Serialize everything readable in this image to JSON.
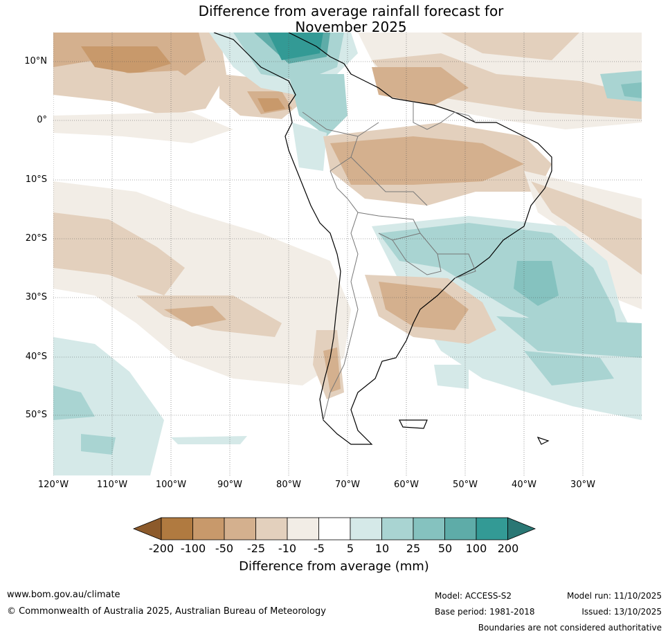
{
  "title": {
    "line1": "Difference from average rainfall forecast for",
    "line2": "November 2025"
  },
  "lat_labels": [
    "10°N",
    "0°",
    "10°S",
    "20°S",
    "30°S",
    "40°S",
    "50°S"
  ],
  "lon_labels": [
    "120°W",
    "110°W",
    "100°W",
    "90°W",
    "80°W",
    "70°W",
    "60°W",
    "50°W",
    "40°W",
    "30°W"
  ],
  "colorbar": {
    "ticks": [
      "-200",
      "-100",
      "-50",
      "-25",
      "-10",
      "-5",
      "5",
      "10",
      "25",
      "50",
      "100",
      "200"
    ],
    "colors": [
      "#8c5a2b",
      "#b07a40",
      "#c8996b",
      "#d4b08e",
      "#e3d0bd",
      "#f2ede6",
      "#ffffff",
      "#d5e9e8",
      "#a9d4d2",
      "#85c2bf",
      "#5eaca8",
      "#339a95",
      "#2a7774"
    ],
    "label": "Difference from average (mm)"
  },
  "footer": {
    "website": "www.bom.gov.au/climate",
    "copyright": "© Commonwealth of Australia 2025, Australian Bureau of Meteorology",
    "model": "Model: ACCESS-S2",
    "base_period": "Base period: 1981-2018",
    "model_run": "Model run: 11/10/2025",
    "issued": "Issued: 13/10/2025",
    "disclaimer": "Boundaries are not considered authoritative"
  }
}
